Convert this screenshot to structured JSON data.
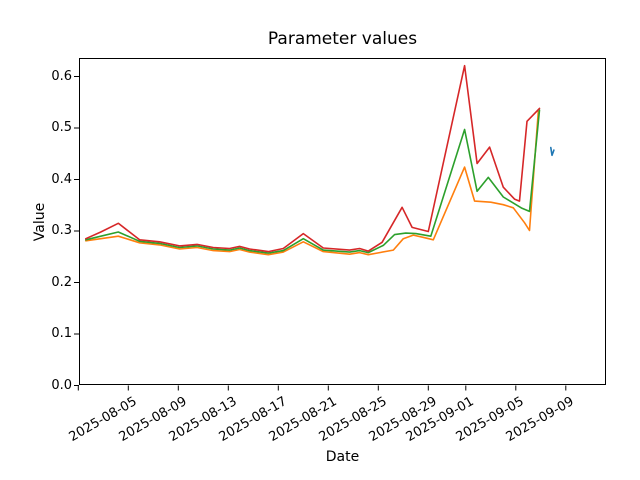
{
  "chart_data": {
    "type": "line",
    "title": "Parameter values",
    "xlabel": "Date",
    "ylabel": "Value",
    "legend": "none",
    "x_axis": {
      "unit": "days since 2025-08-01",
      "range_days": [
        0,
        42.3
      ],
      "ticks": [
        {
          "d": 0,
          "label": ""
        },
        {
          "d": 4,
          "label": "2025-08-05"
        },
        {
          "d": 8,
          "label": "2025-08-09"
        },
        {
          "d": 12,
          "label": "2025-08-13"
        },
        {
          "d": 16,
          "label": "2025-08-17"
        },
        {
          "d": 20,
          "label": "2025-08-21"
        },
        {
          "d": 24,
          "label": "2025-08-25"
        },
        {
          "d": 28,
          "label": "2025-08-29"
        },
        {
          "d": 31,
          "label": "2025-09-01"
        },
        {
          "d": 35,
          "label": "2025-09-05"
        },
        {
          "d": 39,
          "label": "2025-09-09"
        }
      ]
    },
    "y_axis": {
      "ticks": [
        0.0,
        0.1,
        0.2,
        0.3,
        0.4,
        0.5,
        0.6
      ],
      "range": [
        0.0,
        0.636
      ],
      "grid": false
    },
    "series": [
      {
        "name": "blue",
        "color": "#1f77b4",
        "points": [
          [
            37.8,
            0.462
          ],
          [
            37.9,
            0.447
          ],
          [
            38.05,
            0.457
          ]
        ]
      },
      {
        "name": "orange",
        "color": "#ff7f0e",
        "points": [
          [
            0.6,
            0.281
          ],
          [
            1.8,
            0.285
          ],
          [
            3.2,
            0.29
          ],
          [
            4.9,
            0.277
          ],
          [
            6.5,
            0.273
          ],
          [
            8.1,
            0.265
          ],
          [
            9.5,
            0.268
          ],
          [
            10.8,
            0.262
          ],
          [
            12.1,
            0.26
          ],
          [
            12.9,
            0.264
          ],
          [
            13.7,
            0.259
          ],
          [
            15.2,
            0.254
          ],
          [
            16.4,
            0.259
          ],
          [
            18.0,
            0.279
          ],
          [
            19.6,
            0.26
          ],
          [
            21.7,
            0.255
          ],
          [
            22.5,
            0.258
          ],
          [
            23.2,
            0.254
          ],
          [
            24.1,
            0.258
          ],
          [
            25.2,
            0.263
          ],
          [
            26.0,
            0.285
          ],
          [
            26.8,
            0.292
          ],
          [
            27.7,
            0.287
          ],
          [
            28.4,
            0.283
          ],
          [
            30.9,
            0.424
          ],
          [
            31.7,
            0.358
          ],
          [
            33.0,
            0.356
          ],
          [
            34.0,
            0.351
          ],
          [
            34.8,
            0.345
          ],
          [
            35.7,
            0.316
          ],
          [
            36.1,
            0.301
          ],
          [
            36.8,
            0.532
          ]
        ]
      },
      {
        "name": "green",
        "color": "#2ca02c",
        "points": [
          [
            0.6,
            0.283
          ],
          [
            1.8,
            0.29
          ],
          [
            3.2,
            0.298
          ],
          [
            4.9,
            0.28
          ],
          [
            6.5,
            0.276
          ],
          [
            8.1,
            0.268
          ],
          [
            9.5,
            0.271
          ],
          [
            10.8,
            0.265
          ],
          [
            12.1,
            0.263
          ],
          [
            12.9,
            0.267
          ],
          [
            13.7,
            0.262
          ],
          [
            15.2,
            0.257
          ],
          [
            16.4,
            0.262
          ],
          [
            18.0,
            0.285
          ],
          [
            19.6,
            0.263
          ],
          [
            21.7,
            0.259
          ],
          [
            22.5,
            0.262
          ],
          [
            23.2,
            0.258
          ],
          [
            24.4,
            0.272
          ],
          [
            25.3,
            0.293
          ],
          [
            26.2,
            0.296
          ],
          [
            27.0,
            0.295
          ],
          [
            28.2,
            0.29
          ],
          [
            30.9,
            0.497
          ],
          [
            31.9,
            0.377
          ],
          [
            32.8,
            0.404
          ],
          [
            34.0,
            0.366
          ],
          [
            35.5,
            0.344
          ],
          [
            36.1,
            0.338
          ],
          [
            36.9,
            0.535
          ]
        ]
      },
      {
        "name": "red",
        "color": "#d62728",
        "points": [
          [
            0.6,
            0.285
          ],
          [
            1.8,
            0.298
          ],
          [
            3.2,
            0.315
          ],
          [
            4.9,
            0.283
          ],
          [
            6.5,
            0.279
          ],
          [
            8.1,
            0.271
          ],
          [
            9.5,
            0.274
          ],
          [
            10.8,
            0.268
          ],
          [
            12.1,
            0.266
          ],
          [
            12.9,
            0.27
          ],
          [
            13.7,
            0.265
          ],
          [
            15.2,
            0.26
          ],
          [
            16.4,
            0.266
          ],
          [
            18.0,
            0.295
          ],
          [
            19.6,
            0.267
          ],
          [
            21.7,
            0.263
          ],
          [
            22.5,
            0.266
          ],
          [
            23.2,
            0.261
          ],
          [
            24.3,
            0.278
          ],
          [
            25.9,
            0.346
          ],
          [
            26.7,
            0.307
          ],
          [
            28.0,
            0.299
          ],
          [
            30.9,
            0.621
          ],
          [
            31.9,
            0.431
          ],
          [
            32.9,
            0.463
          ],
          [
            34.0,
            0.385
          ],
          [
            34.9,
            0.362
          ],
          [
            35.3,
            0.358
          ],
          [
            35.9,
            0.513
          ],
          [
            36.9,
            0.538
          ]
        ]
      }
    ]
  }
}
